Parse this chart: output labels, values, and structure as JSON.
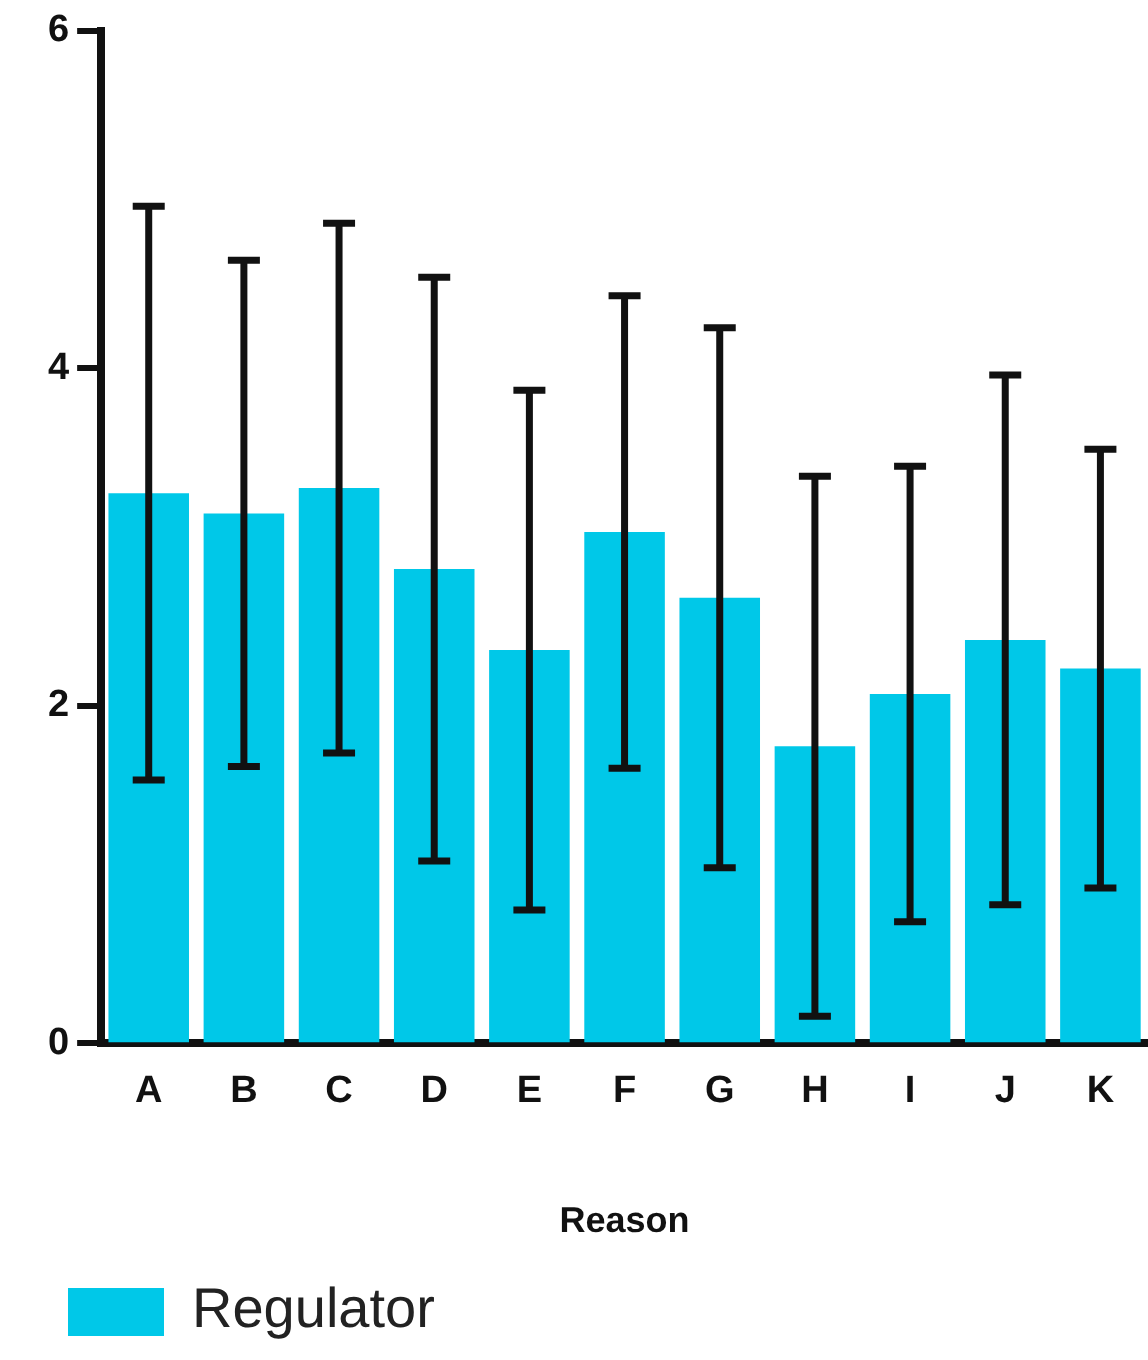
{
  "chart_data": {
    "type": "bar",
    "xlabel": "Reason",
    "categories": [
      "A",
      "B",
      "C",
      "D",
      "E",
      "F",
      "G",
      "H",
      "I",
      "J",
      "K"
    ],
    "series": [
      {
        "name": "Regulator",
        "color": "#00c8e8",
        "values": [
          3.26,
          3.14,
          3.29,
          2.81,
          2.33,
          3.03,
          2.64,
          1.76,
          2.07,
          2.39,
          2.22
        ],
        "errors": [
          1.7,
          1.5,
          1.57,
          1.73,
          1.54,
          1.4,
          1.6,
          1.6,
          1.35,
          1.57,
          1.3
        ]
      }
    ],
    "ylim": [
      0,
      6
    ],
    "yticks": [
      0,
      2,
      4,
      6
    ],
    "grid": false,
    "legend": "bottom left"
  }
}
